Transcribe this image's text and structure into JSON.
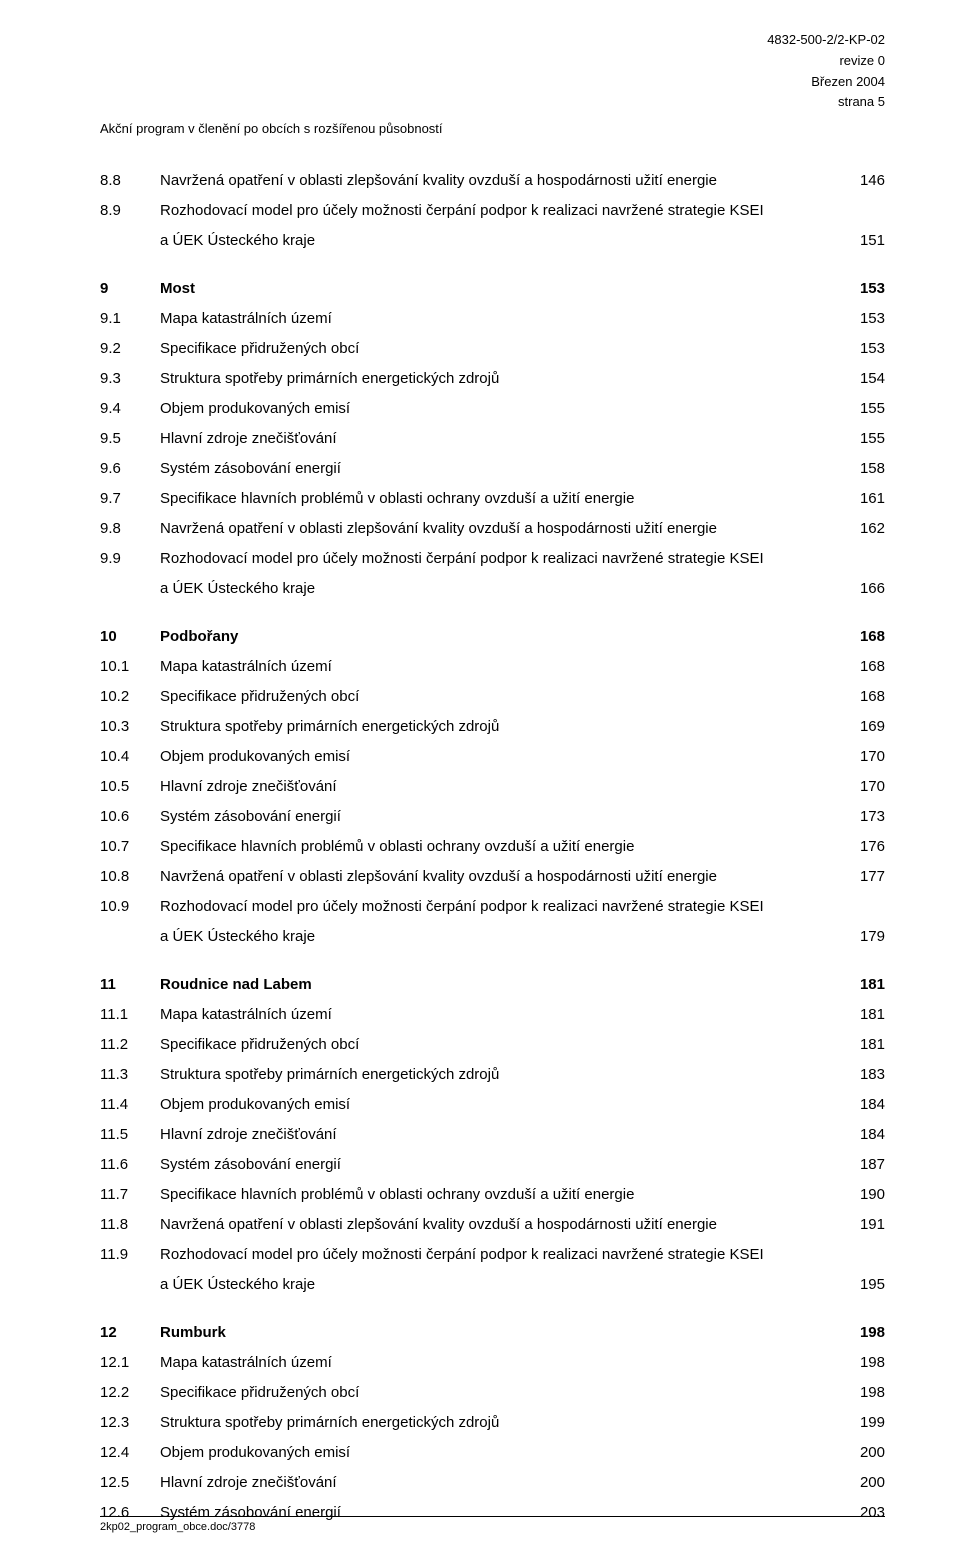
{
  "header": {
    "doc_id": "4832-500-2/2-KP-02",
    "revision": "revize 0",
    "date": "Březen 2004",
    "page": "strana 5",
    "left": "Akční program v členění po obcích s rozšířenou působností"
  },
  "sections": [
    {
      "rows": [
        {
          "num": "8.8",
          "title": "Navržená opatření v oblasti zlepšování kvality ovzduší a hospodárnosti užití energie",
          "page": "146"
        },
        {
          "num": "8.9",
          "title": "Rozhodovací model pro účely možnosti čerpání podpor k realizaci navržené strategie KSEI",
          "page": ""
        },
        {
          "num": "",
          "title": "a ÚEK Ústeckého kraje",
          "page": "151"
        }
      ]
    },
    {
      "rows": [
        {
          "num": "9",
          "title": "Most",
          "page": "153",
          "bold": true
        },
        {
          "num": "9.1",
          "title": "Mapa katastrálních území",
          "page": "153"
        },
        {
          "num": "9.2",
          "title": "Specifikace přidružených obcí",
          "page": "153"
        },
        {
          "num": "9.3",
          "title": "Struktura spotřeby primárních energetických zdrojů",
          "page": "154"
        },
        {
          "num": "9.4",
          "title": "Objem produkovaných emisí",
          "page": "155"
        },
        {
          "num": "9.5",
          "title": "Hlavní zdroje znečišťování",
          "page": "155"
        },
        {
          "num": "9.6",
          "title": "Systém zásobování energií",
          "page": "158"
        },
        {
          "num": "9.7",
          "title": "Specifikace hlavních problémů v oblasti ochrany ovzduší a užití energie",
          "page": "161"
        },
        {
          "num": "9.8",
          "title": "Navržená opatření v oblasti zlepšování kvality ovzduší a hospodárnosti užití energie",
          "page": "162"
        },
        {
          "num": "9.9",
          "title": "Rozhodovací model pro účely možnosti čerpání podpor k realizaci navržené strategie KSEI",
          "page": ""
        },
        {
          "num": "",
          "title": "a ÚEK Ústeckého kraje",
          "page": "166"
        }
      ]
    },
    {
      "rows": [
        {
          "num": "10",
          "title": "Podbořany",
          "page": "168",
          "bold": true
        },
        {
          "num": "10.1",
          "title": "Mapa katastrálních území",
          "page": "168"
        },
        {
          "num": "10.2",
          "title": "Specifikace přidružených obcí",
          "page": "168"
        },
        {
          "num": "10.3",
          "title": "Struktura spotřeby primárních energetických zdrojů",
          "page": "169"
        },
        {
          "num": "10.4",
          "title": "Objem produkovaných emisí",
          "page": "170"
        },
        {
          "num": "10.5",
          "title": "Hlavní zdroje znečišťování",
          "page": "170"
        },
        {
          "num": "10.6",
          "title": "Systém zásobování energií",
          "page": "173"
        },
        {
          "num": "10.7",
          "title": "Specifikace hlavních problémů v oblasti ochrany ovzduší a užití energie",
          "page": "176"
        },
        {
          "num": "10.8",
          "title": "Navržená opatření v oblasti zlepšování kvality ovzduší a hospodárnosti užití energie",
          "page": "177"
        },
        {
          "num": "10.9",
          "title": "Rozhodovací model pro účely možnosti čerpání podpor k realizaci navržené strategie KSEI",
          "page": ""
        },
        {
          "num": "",
          "title": "a ÚEK Ústeckého kraje",
          "page": "179"
        }
      ]
    },
    {
      "rows": [
        {
          "num": "11",
          "title": "Roudnice nad Labem",
          "page": "181",
          "bold": true
        },
        {
          "num": "11.1",
          "title": "Mapa katastrálních území",
          "page": "181"
        },
        {
          "num": "11.2",
          "title": "Specifikace přidružených obcí",
          "page": "181"
        },
        {
          "num": "11.3",
          "title": "Struktura spotřeby primárních energetických zdrojů",
          "page": "183"
        },
        {
          "num": "11.4",
          "title": "Objem produkovaných emisí",
          "page": "184"
        },
        {
          "num": "11.5",
          "title": "Hlavní zdroje znečišťování",
          "page": "184"
        },
        {
          "num": "11.6",
          "title": "Systém zásobování energií",
          "page": "187"
        },
        {
          "num": "11.7",
          "title": "Specifikace hlavních problémů v oblasti ochrany ovzduší a užití energie",
          "page": "190"
        },
        {
          "num": "11.8",
          "title": "Navržená opatření v oblasti zlepšování kvality ovzduší a hospodárnosti užití energie",
          "page": "191"
        },
        {
          "num": "11.9",
          "title": "Rozhodovací model pro účely možnosti čerpání podpor k realizaci navržené strategie KSEI",
          "page": ""
        },
        {
          "num": "",
          "title": "a ÚEK Ústeckého kraje",
          "page": "195"
        }
      ]
    },
    {
      "rows": [
        {
          "num": "12",
          "title": "Rumburk",
          "page": "198",
          "bold": true
        },
        {
          "num": "12.1",
          "title": "Mapa katastrálních území",
          "page": "198"
        },
        {
          "num": "12.2",
          "title": "Specifikace přidružených obcí",
          "page": "198"
        },
        {
          "num": "12.3",
          "title": "Struktura spotřeby primárních energetických zdrojů",
          "page": "199"
        },
        {
          "num": "12.4",
          "title": "Objem produkovaných emisí",
          "page": "200"
        },
        {
          "num": "12.5",
          "title": "Hlavní zdroje znečišťování",
          "page": "200"
        },
        {
          "num": "12.6",
          "title": "Systém zásobování energií",
          "page": "203"
        }
      ]
    }
  ],
  "footer": "2kp02_program_obce.doc/3778"
}
